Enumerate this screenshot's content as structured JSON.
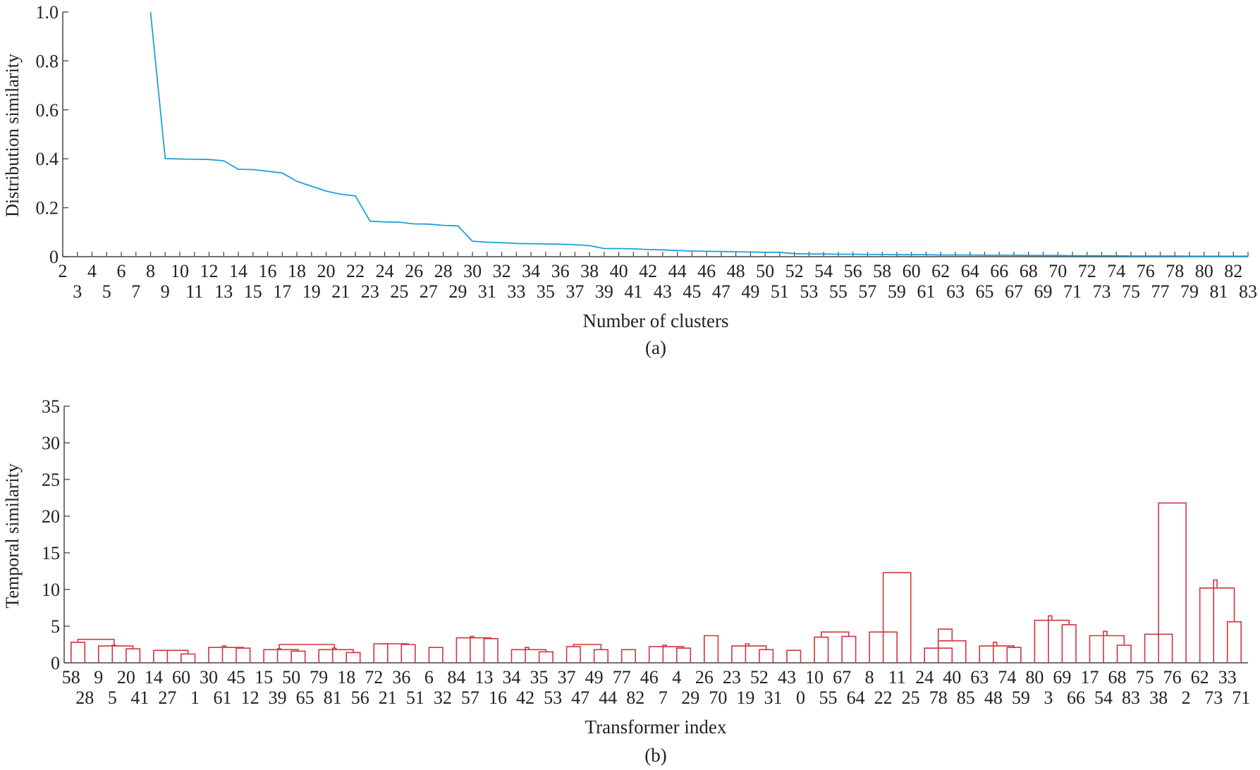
{
  "colors": {
    "line": "#1aa3d8",
    "dendro": "#d0353f",
    "axis": "#444444",
    "text": "#222222"
  },
  "chart_data": [
    {
      "type": "line",
      "caption": "(a)",
      "xlabel": "Number of clusters",
      "ylabel": "Distribution similarity",
      "xlim": [
        2,
        83
      ],
      "ylim": [
        0,
        1.0
      ],
      "yticks": [
        0,
        0.2,
        0.4,
        0.6,
        0.8,
        1.0
      ],
      "ytick_labels": [
        "0",
        "0.2",
        "0.4",
        "0.6",
        "0.8",
        "1.0"
      ],
      "xtick_labels_top": [
        "2",
        "4",
        "6",
        "8",
        "10",
        "12",
        "14",
        "16",
        "18",
        "20",
        "22",
        "24",
        "26",
        "28",
        "30",
        "32",
        "34",
        "36",
        "38",
        "40",
        "42",
        "44",
        "46",
        "48",
        "50",
        "52",
        "54",
        "56",
        "58",
        "60",
        "62",
        "64",
        "66",
        "68",
        "70",
        "72",
        "74",
        "76",
        "78",
        "80",
        "82"
      ],
      "xtick_labels_bottom": [
        "3",
        "5",
        "7",
        "9",
        "11",
        "13",
        "15",
        "17",
        "19",
        "21",
        "23",
        "25",
        "27",
        "29",
        "31",
        "33",
        "35",
        "37",
        "39",
        "41",
        "43",
        "45",
        "47",
        "49",
        "51",
        "53",
        "55",
        "57",
        "59",
        "61",
        "63",
        "65",
        "67",
        "69",
        "71",
        "73",
        "75",
        "77",
        "79",
        "81",
        "83"
      ],
      "x": [
        8,
        9,
        10,
        11,
        12,
        13,
        14,
        15,
        16,
        17,
        18,
        19,
        20,
        21,
        22,
        23,
        24,
        25,
        26,
        27,
        28,
        29,
        30,
        31,
        32,
        33,
        34,
        35,
        36,
        37,
        38,
        39,
        40,
        41,
        42,
        43,
        44,
        45,
        46,
        47,
        48,
        49,
        50,
        51,
        52,
        53,
        54,
        55,
        56,
        57,
        58,
        59,
        60,
        61,
        62,
        63,
        64,
        65,
        66,
        67,
        68,
        69,
        70,
        71,
        72,
        73,
        74,
        75,
        76,
        77,
        78,
        79,
        80,
        81,
        82,
        83
      ],
      "y": [
        1.0,
        0.401,
        0.399,
        0.398,
        0.397,
        0.392,
        0.357,
        0.356,
        0.349,
        0.342,
        0.308,
        0.288,
        0.268,
        0.255,
        0.248,
        0.145,
        0.142,
        0.141,
        0.134,
        0.133,
        0.128,
        0.126,
        0.063,
        0.059,
        0.057,
        0.054,
        0.053,
        0.052,
        0.051,
        0.049,
        0.045,
        0.033,
        0.033,
        0.032,
        0.029,
        0.028,
        0.025,
        0.023,
        0.022,
        0.021,
        0.02,
        0.019,
        0.018,
        0.018,
        0.012,
        0.011,
        0.011,
        0.01,
        0.01,
        0.009,
        0.009,
        0.008,
        0.008,
        0.008,
        0.007,
        0.007,
        0.007,
        0.006,
        0.006,
        0.006,
        0.005,
        0.005,
        0.005,
        0.004,
        0.004,
        0.004,
        0.004,
        0.003,
        0.003,
        0.003,
        0.003,
        0.002,
        0.002,
        0.002,
        0.002,
        0.002
      ]
    },
    {
      "type": "dendrogram",
      "caption": "(b)",
      "xlabel": "Transformer index",
      "ylabel": "Temporal similarity",
      "ylim": [
        0,
        35
      ],
      "yticks": [
        0,
        5,
        10,
        15,
        20,
        25,
        30,
        35
      ],
      "ytick_labels": [
        "0",
        "5",
        "10",
        "15",
        "20",
        "25",
        "30",
        "35"
      ],
      "leaves": [
        "58",
        "28",
        "9",
        "5",
        "20",
        "41",
        "14",
        "27",
        "60",
        "1",
        "30",
        "61",
        "45",
        "12",
        "15",
        "39",
        "50",
        "65",
        "79",
        "81",
        "18",
        "56",
        "72",
        "21",
        "36",
        "51",
        "6",
        "32",
        "84",
        "57",
        "13",
        "16",
        "34",
        "42",
        "35",
        "53",
        "37",
        "47",
        "49",
        "44",
        "77",
        "82",
        "46",
        "7",
        "4",
        "29",
        "26",
        "70",
        "23",
        "19",
        "52",
        "31",
        "43",
        "0",
        "10",
        "55",
        "67",
        "64",
        "8",
        "22",
        "11",
        "25",
        "24",
        "78",
        "40",
        "85",
        "63",
        "48",
        "74",
        "59",
        "80",
        "3",
        "69",
        "66",
        "17",
        "54",
        "68",
        "83",
        "75",
        "38",
        "76",
        "2",
        "62",
        "73",
        "33",
        "71"
      ],
      "merges": [
        [
          0,
          2,
          3.2
        ],
        [
          0,
          1,
          2.8
        ],
        [
          2,
          3,
          2.4
        ],
        [
          2,
          4,
          2.3
        ],
        [
          4,
          5,
          1.9
        ],
        [
          6,
          7,
          1.7
        ],
        [
          6,
          8,
          1.7
        ],
        [
          8,
          9,
          1.2
        ],
        [
          10,
          11,
          2.3
        ],
        [
          10,
          12,
          2.1
        ],
        [
          12,
          13,
          2.0
        ],
        [
          14,
          15,
          1.9
        ],
        [
          14,
          16,
          1.8
        ],
        [
          16,
          17,
          1.6
        ],
        [
          16,
          18,
          2.5
        ],
        [
          18,
          19,
          2.0
        ],
        [
          18,
          20,
          1.8
        ],
        [
          20,
          21,
          1.4
        ],
        [
          22,
          23,
          2.6
        ],
        [
          22,
          24,
          2.6
        ],
        [
          24,
          25,
          2.5
        ],
        [
          26,
          27,
          2.1
        ],
        [
          28,
          29,
          3.6
        ],
        [
          28,
          30,
          3.4
        ],
        [
          30,
          31,
          3.3
        ],
        [
          32,
          33,
          2.1
        ],
        [
          32,
          34,
          1.8
        ],
        [
          34,
          35,
          1.5
        ],
        [
          36,
          37,
          2.2
        ],
        [
          36,
          38,
          2.5
        ],
        [
          38,
          39,
          1.8
        ],
        [
          40,
          41,
          1.8
        ],
        [
          42,
          43,
          2.4
        ],
        [
          42,
          44,
          2.2
        ],
        [
          44,
          45,
          2.0
        ],
        [
          46,
          47,
          3.7
        ],
        [
          48,
          49,
          2.6
        ],
        [
          48,
          50,
          2.3
        ],
        [
          50,
          51,
          1.8
        ],
        [
          52,
          53,
          1.7
        ],
        [
          54,
          55,
          3.5
        ],
        [
          54,
          56,
          4.2
        ],
        [
          56,
          57,
          3.6
        ],
        [
          58,
          59,
          5.2
        ],
        [
          58,
          60,
          4.2
        ],
        [
          60,
          61,
          12.3
        ],
        [
          62,
          63,
          4.6
        ],
        [
          62,
          64,
          2.0
        ],
        [
          64,
          65,
          3.0
        ],
        [
          66,
          67,
          2.8
        ],
        [
          66,
          68,
          2.3
        ],
        [
          68,
          69,
          2.1
        ],
        [
          70,
          71,
          6.4
        ],
        [
          70,
          72,
          5.8
        ],
        [
          72,
          73,
          5.2
        ],
        [
          74,
          75,
          4.3
        ],
        [
          74,
          76,
          3.7
        ],
        [
          76,
          77,
          2.4
        ],
        [
          78,
          79,
          6.4
        ],
        [
          78,
          80,
          3.9
        ],
        [
          80,
          81,
          21.8
        ],
        [
          82,
          83,
          11.3
        ],
        [
          82,
          84,
          10.2
        ],
        [
          84,
          85,
          5.6
        ]
      ]
    }
  ]
}
